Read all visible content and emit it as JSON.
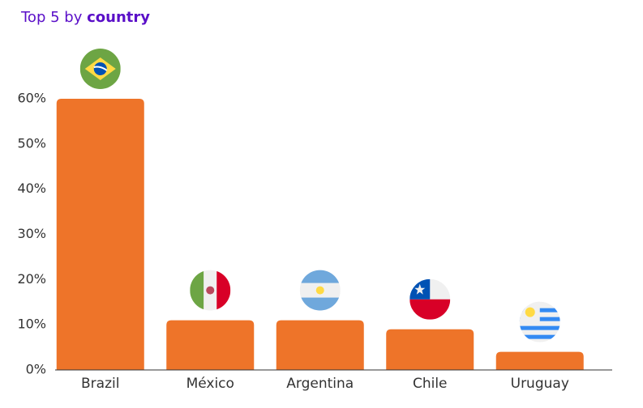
{
  "chart_data": {
    "type": "bar",
    "title": {
      "text": "Top 5 by",
      "emphasis": "country"
    },
    "title_color": "#5a0fc8",
    "categories": [
      "Brazil",
      "México",
      "Argentina",
      "Chile",
      "Uruguay"
    ],
    "values": [
      60,
      11,
      11,
      9,
      4
    ],
    "color": "#ee7429",
    "ylim": [
      0,
      60
    ],
    "yticks": [
      {
        "value": 0,
        "label": "0%"
      },
      {
        "value": 10,
        "label": "10%"
      },
      {
        "value": 20,
        "label": "20%"
      },
      {
        "value": 30,
        "label": "30%"
      },
      {
        "value": 40,
        "label": "40%"
      },
      {
        "value": 50,
        "label": "50%"
      },
      {
        "value": 60,
        "label": "60%"
      }
    ],
    "grid": false
  }
}
